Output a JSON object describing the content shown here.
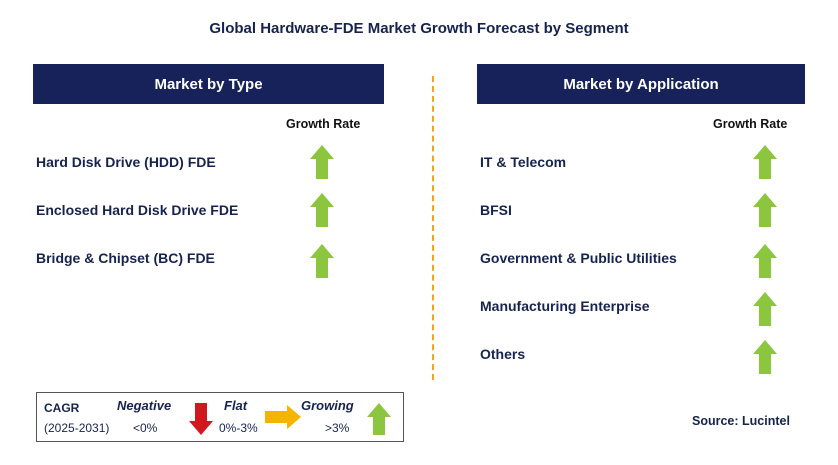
{
  "title": "Global Hardware-FDE Market Growth Forecast by Segment",
  "type_panel": {
    "header": "Market by Type",
    "column_header": "Growth Rate",
    "rows": [
      {
        "label": "Hard Disk Drive (HDD) FDE",
        "trend": "growing"
      },
      {
        "label": "Enclosed Hard Disk Drive FDE",
        "trend": "growing"
      },
      {
        "label": "Bridge & Chipset (BC) FDE",
        "trend": "growing"
      }
    ]
  },
  "application_panel": {
    "header": "Market by Application",
    "column_header": "Growth Rate",
    "rows": [
      {
        "label": "IT & Telecom",
        "trend": "growing"
      },
      {
        "label": "BFSI",
        "trend": "growing"
      },
      {
        "label": "Government & Public Utilities",
        "trend": "growing"
      },
      {
        "label": "Manufacturing Enterprise",
        "trend": "growing"
      },
      {
        "label": "Others",
        "trend": "growing"
      }
    ]
  },
  "legend": {
    "cagr_label": "CAGR",
    "period": "(2025-2031)",
    "negative_label": "Negative",
    "negative_range": "<0%",
    "flat_label": "Flat",
    "flat_range": "0%-3%",
    "growing_label": "Growing",
    "growing_range": ">3%"
  },
  "source": "Source: Lucintel",
  "colors": {
    "header_bg": "#17215a",
    "text": "#17234f",
    "up_arrow": "#8cc63f",
    "down_arrow": "#d0181f",
    "flat_arrow": "#f5b400",
    "divider": "#f2a51c"
  }
}
